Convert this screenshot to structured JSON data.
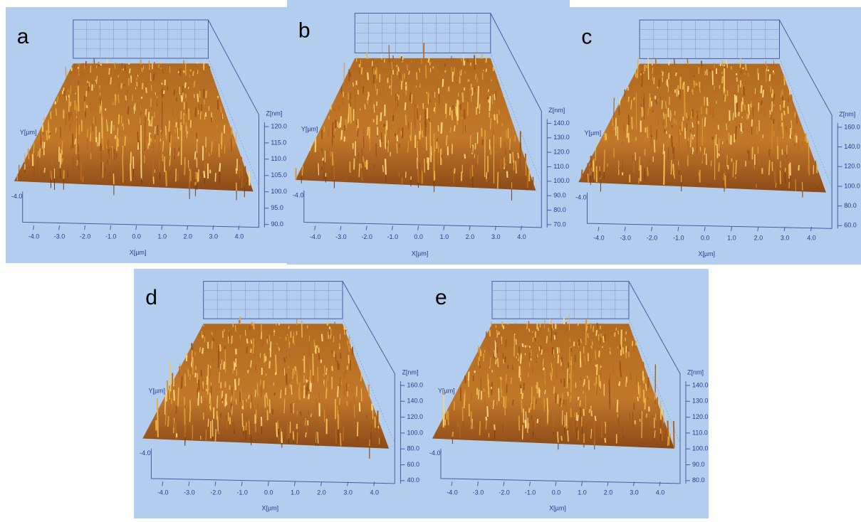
{
  "panels": [
    {
      "label": "a",
      "z_label": "Z[nm]",
      "y_label": "Y[µm]",
      "x_label": "X[µm]",
      "y_tick": "-4.0",
      "z_ticks": [
        "120.0",
        "115.0",
        "110.0",
        "105.0",
        "100.0",
        "95.0",
        "90.0"
      ],
      "x_ticks": [
        "-4.0",
        "-3.0",
        "-2.0",
        "-1.0",
        "0.0",
        "1.0",
        "2.0",
        "3.0",
        "4.0"
      ]
    },
    {
      "label": "b",
      "z_label": "Z[nm]",
      "y_label": "Y[µm]",
      "x_label": "X[µm]",
      "y_tick": "-4.0",
      "z_ticks": [
        "140.0",
        "130.0",
        "120.0",
        "110.0",
        "100.0",
        "90.0",
        "80.0",
        "70.0"
      ],
      "x_ticks": [
        "-4.0",
        "-3.0",
        "-2.0",
        "-1.0",
        "0.0",
        "1.0",
        "2.0",
        "3.0",
        "4.0"
      ]
    },
    {
      "label": "c",
      "z_label": "Z[nm]",
      "y_label": "Y[µm]",
      "x_label": "X[µm]",
      "y_tick": "-4.0",
      "z_ticks": [
        "160.0",
        "140.0",
        "120.0",
        "100.0",
        "80.0",
        "60.0"
      ],
      "x_ticks": [
        "-4.0",
        "-3.0",
        "-2.0",
        "-1.0",
        "0.0",
        "1.0",
        "2.0",
        "3.0",
        "4.0"
      ]
    },
    {
      "label": "d",
      "z_label": "Z[nm]",
      "y_label": "Y[µm]",
      "x_label": "X[µm]",
      "y_tick": "-4.0",
      "z_ticks": [
        "160.0",
        "140.0",
        "120.0",
        "100.0",
        "80.0",
        "60.0",
        "40.0"
      ],
      "x_ticks": [
        "-4.0",
        "-3.0",
        "-2.0",
        "-1.0",
        "0.0",
        "1.0",
        "2.0",
        "3.0",
        "4.0"
      ]
    },
    {
      "label": "e",
      "z_label": "Z[nm]",
      "y_label": "Y[µm]",
      "x_label": "X[µm]",
      "y_tick": "-4.0",
      "z_ticks": [
        "140.0",
        "130.0",
        "120.0",
        "110.0",
        "100.0",
        "90.0",
        "80.0"
      ],
      "x_ticks": [
        "-4.0",
        "-3.0",
        "-2.0",
        "-1.0",
        "0.0",
        "1.0",
        "2.0",
        "3.0",
        "4.0"
      ]
    }
  ]
}
